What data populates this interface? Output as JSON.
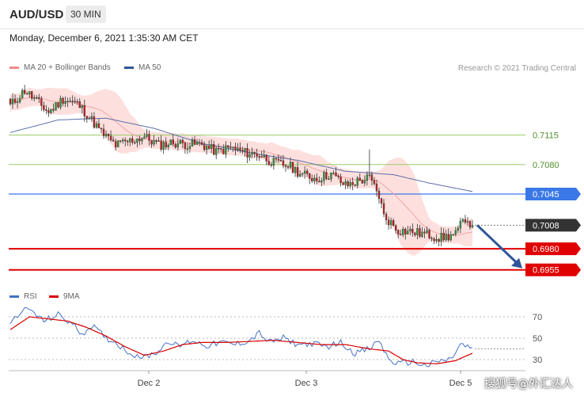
{
  "header": {
    "pair": "AUD/USD",
    "timeframe": "30 MIN"
  },
  "timestamp": "Monday, December 6, 2021 1:35:30 AM CET",
  "legend": {
    "ma20": {
      "label": "MA 20 + Bollinger Bands",
      "color": "#f08a8a"
    },
    "ma50": {
      "label": "MA 50",
      "color": "#2f5597"
    }
  },
  "copyright": "Research © 2021 Trading Central",
  "rsi_legend": {
    "rsi": {
      "label": "RSI",
      "color": "#4472c4"
    },
    "ma9": {
      "label": "9MA",
      "color": "#d90000"
    }
  },
  "watermark": "搜狐号@外汇达人",
  "chart_data": [
    {
      "type": "candlestick",
      "ylim": [
        0.6935,
        0.7186
      ],
      "x_labels": [
        "Dec 2",
        "Dec 3",
        "Dec 5"
      ],
      "levels": [
        {
          "value": 0.7115,
          "label": "0.7115",
          "style": "green-line"
        },
        {
          "value": 0.708,
          "label": "0.7080",
          "style": "green-line"
        },
        {
          "value": 0.7045,
          "label": "0.7045",
          "style": "blue-badge"
        },
        {
          "value": 0.7008,
          "label": "0.7008",
          "style": "current-price"
        },
        {
          "value": 0.698,
          "label": "0.6980",
          "style": "red-badge"
        },
        {
          "value": 0.6955,
          "label": "0.6955",
          "style": "red-badge"
        }
      ],
      "close_anchors": [
        [
          0,
          0.715
        ],
        [
          6,
          0.7168
        ],
        [
          10,
          0.7158
        ],
        [
          16,
          0.7142
        ],
        [
          22,
          0.7158
        ],
        [
          28,
          0.7152
        ],
        [
          32,
          0.714
        ],
        [
          38,
          0.7118
        ],
        [
          44,
          0.7103
        ],
        [
          50,
          0.7108
        ],
        [
          56,
          0.7113
        ],
        [
          62,
          0.7103
        ],
        [
          68,
          0.7106
        ],
        [
          74,
          0.7104
        ],
        [
          80,
          0.7104
        ],
        [
          86,
          0.7095
        ],
        [
          92,
          0.71
        ],
        [
          98,
          0.7094
        ],
        [
          104,
          0.7092
        ],
        [
          110,
          0.7082
        ],
        [
          116,
          0.7079
        ],
        [
          122,
          0.7068
        ],
        [
          128,
          0.7063
        ],
        [
          134,
          0.7069
        ],
        [
          140,
          0.7055
        ],
        [
          146,
          0.7061
        ],
        [
          150,
          0.7064
        ],
        [
          154,
          0.7043
        ],
        [
          156,
          0.7019
        ],
        [
          162,
          0.7002
        ],
        [
          168,
          0.7
        ],
        [
          174,
          0.6997
        ],
        [
          180,
          0.6993
        ],
        [
          186,
          0.6997
        ],
        [
          190,
          0.7017
        ],
        [
          193,
          0.7008
        ]
      ],
      "ma50_anchors": [
        [
          0,
          0.7118
        ],
        [
          20,
          0.7133
        ],
        [
          40,
          0.7135
        ],
        [
          60,
          0.7123
        ],
        [
          80,
          0.7105
        ],
        [
          100,
          0.7094
        ],
        [
          120,
          0.7085
        ],
        [
          140,
          0.7072
        ],
        [
          160,
          0.7068
        ],
        [
          175,
          0.7058
        ],
        [
          193,
          0.7048
        ]
      ],
      "projection": {
        "from": 0.7008,
        "to": 0.6955
      }
    },
    {
      "type": "line",
      "title": "RSI",
      "yticks": [
        30,
        50,
        70
      ],
      "rsi_anchors": [
        [
          0,
          62
        ],
        [
          4,
          75
        ],
        [
          8,
          77
        ],
        [
          14,
          66
        ],
        [
          20,
          72
        ],
        [
          26,
          63
        ],
        [
          30,
          54
        ],
        [
          34,
          62
        ],
        [
          40,
          50
        ],
        [
          44,
          46
        ],
        [
          50,
          36
        ],
        [
          56,
          32
        ],
        [
          62,
          38
        ],
        [
          66,
          48
        ],
        [
          70,
          42
        ],
        [
          76,
          48
        ],
        [
          82,
          43
        ],
        [
          88,
          46
        ],
        [
          94,
          44
        ],
        [
          100,
          48
        ],
        [
          104,
          55
        ],
        [
          108,
          46
        ],
        [
          114,
          50
        ],
        [
          120,
          44
        ],
        [
          126,
          45
        ],
        [
          132,
          42
        ],
        [
          138,
          46
        ],
        [
          144,
          36
        ],
        [
          150,
          40
        ],
        [
          154,
          48
        ],
        [
          158,
          30
        ],
        [
          162,
          26
        ],
        [
          168,
          28
        ],
        [
          174,
          24
        ],
        [
          178,
          28
        ],
        [
          184,
          30
        ],
        [
          188,
          44
        ],
        [
          193,
          40
        ]
      ],
      "ma9_anchors": [
        [
          0,
          58
        ],
        [
          8,
          70
        ],
        [
          16,
          68
        ],
        [
          24,
          66
        ],
        [
          32,
          60
        ],
        [
          40,
          52
        ],
        [
          48,
          42
        ],
        [
          56,
          34
        ],
        [
          64,
          38
        ],
        [
          72,
          44
        ],
        [
          80,
          46
        ],
        [
          90,
          46
        ],
        [
          100,
          47
        ],
        [
          110,
          48
        ],
        [
          120,
          46
        ],
        [
          130,
          44
        ],
        [
          140,
          44
        ],
        [
          150,
          40
        ],
        [
          158,
          38
        ],
        [
          164,
          30
        ],
        [
          170,
          27
        ],
        [
          178,
          26
        ],
        [
          186,
          29
        ],
        [
          193,
          36
        ]
      ]
    }
  ]
}
